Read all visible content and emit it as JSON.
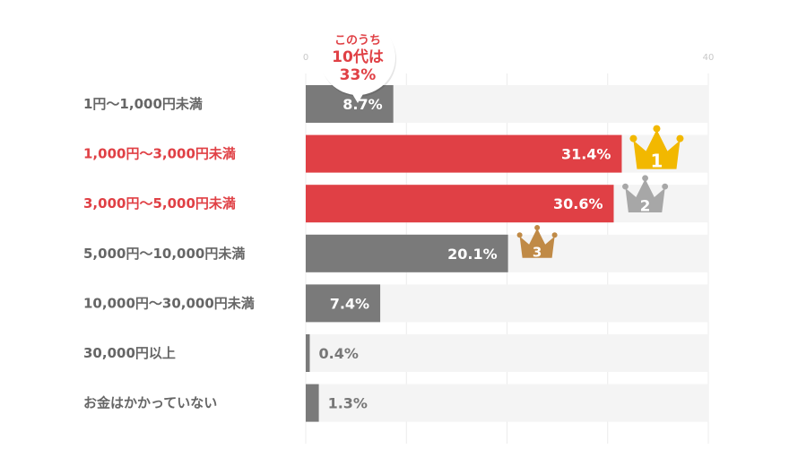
{
  "chart_data": {
    "type": "bar",
    "orientation": "horizontal",
    "categories": [
      "1円〜1,000円未満",
      "1,000円〜3,000円未満",
      "3,000円〜5,000円未満",
      "5,000円〜10,000円未満",
      "10,000円〜30,000円未満",
      "30,000円以上",
      "お金はかかっていない"
    ],
    "values": [
      8.7,
      31.4,
      30.6,
      20.1,
      7.4,
      0.4,
      1.3
    ],
    "value_labels": [
      "8.7%",
      "31.4%",
      "30.6%",
      "20.1%",
      "7.4%",
      "0.4%",
      "1.3%"
    ],
    "highlighted": [
      false,
      true,
      true,
      false,
      false,
      false,
      false
    ],
    "xlim": [
      0,
      40
    ],
    "tick_labels": [
      "0",
      "40"
    ],
    "grid": true,
    "ranks": [
      {
        "category_index": 1,
        "rank": "1",
        "color": "#f2b800"
      },
      {
        "category_index": 2,
        "rank": "2",
        "color": "#a7a7a7"
      },
      {
        "category_index": 3,
        "rank": "3",
        "color": "#c08a46"
      }
    ],
    "callout": {
      "line1": "このうち",
      "line2": "10代は",
      "line3": "33%",
      "category_index": 0
    },
    "colors": {
      "bar": "#7a7a7a",
      "highlight": "#e04045",
      "track": "#f4f4f4",
      "label": "#666666",
      "highlight_label": "#e04045",
      "value_outside": "#777777",
      "value_inside": "#ffffff"
    }
  }
}
